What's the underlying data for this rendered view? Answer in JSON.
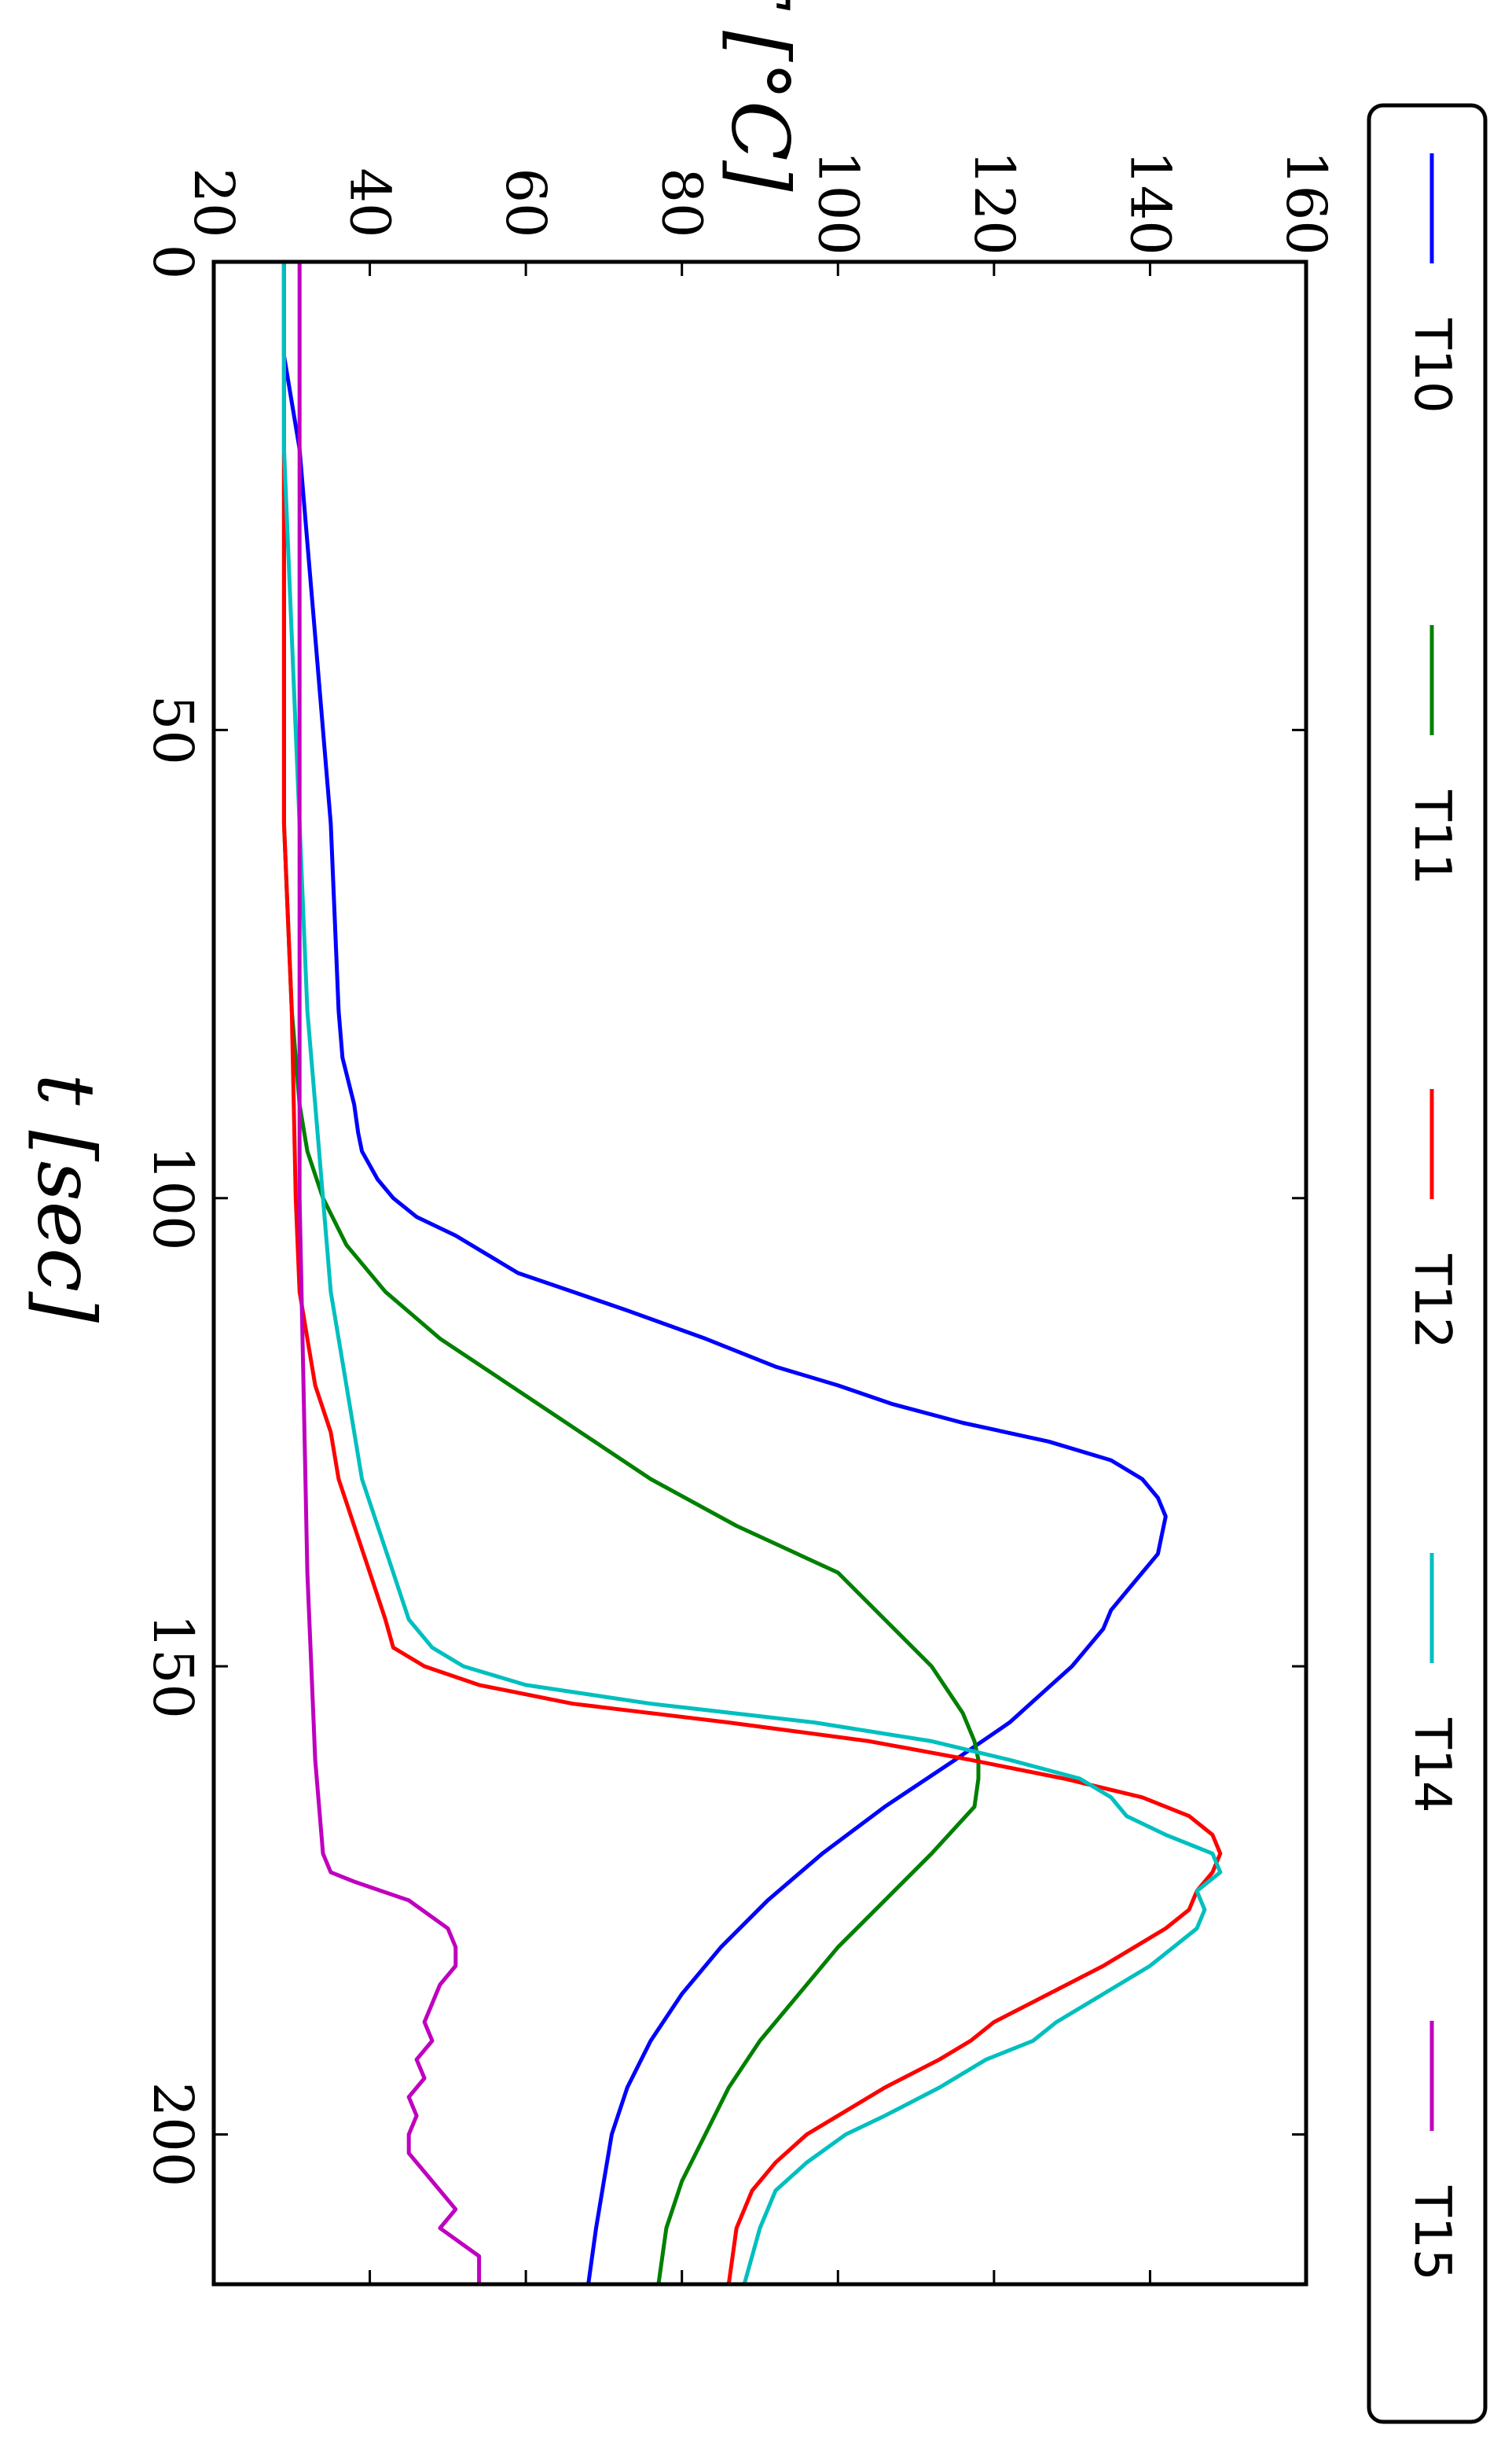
{
  "chart_data": {
    "type": "line",
    "orientation": "rotated-90-clockwise",
    "xlabel": "t [sec]",
    "ylabel": "T [°C]",
    "xlim": [
      0,
      216
    ],
    "ylim": [
      20,
      160
    ],
    "x_ticks": [
      "0",
      "50",
      "100",
      "150",
      "200"
    ],
    "y_ticks": [
      "20",
      "40",
      "60",
      "80",
      "100",
      "120",
      "140",
      "160"
    ],
    "grid": false,
    "legend_position": "right",
    "series": [
      {
        "name": "T10",
        "color": "#0000ff",
        "x": [
          0,
          10,
          20,
          30,
          40,
          50,
          60,
          70,
          80,
          85,
          90,
          93,
          95,
          98,
          100,
          102,
          104,
          106,
          108,
          110,
          112,
          115,
          118,
          120,
          122,
          124,
          126,
          128,
          130,
          132,
          134,
          136,
          138,
          140,
          142,
          144,
          146,
          148,
          150,
          153,
          156,
          160,
          165,
          170,
          175,
          180,
          185,
          190,
          195,
          200,
          205,
          210,
          216
        ],
        "y": [
          29,
          29,
          31,
          32,
          33,
          34,
          35,
          35.5,
          36,
          36.5,
          38,
          38.5,
          39,
          41,
          43,
          46,
          51,
          55,
          59,
          66,
          73,
          83,
          92,
          100,
          107,
          116,
          127,
          135,
          139,
          141,
          142,
          141.5,
          141,
          139,
          137,
          135,
          134,
          132,
          130,
          126,
          122,
          115,
          106,
          98,
          91,
          85,
          80,
          76,
          73,
          71,
          70,
          69,
          68
        ]
      },
      {
        "name": "T11",
        "color": "#008000",
        "x": [
          0,
          20,
          40,
          60,
          80,
          90,
          95,
          100,
          105,
          110,
          115,
          120,
          125,
          130,
          135,
          140,
          145,
          150,
          155,
          158,
          160,
          162,
          165,
          170,
          175,
          180,
          185,
          190,
          195,
          200,
          205,
          210,
          216
        ],
        "y": [
          29,
          29,
          29,
          29,
          30,
          31,
          32,
          34,
          37,
          42,
          49,
          58,
          67,
          76,
          87,
          100,
          106,
          112,
          116,
          117.5,
          118,
          118,
          117.5,
          112,
          106,
          100,
          95,
          90,
          86,
          83,
          80,
          78,
          77
        ]
      },
      {
        "name": "T12",
        "color": "#ff0000",
        "x": [
          0,
          20,
          40,
          60,
          80,
          100,
          110,
          115,
          120,
          125,
          130,
          135,
          140,
          145,
          148,
          150,
          152,
          154,
          156,
          158,
          160,
          162,
          164,
          166,
          168,
          170,
          172,
          174,
          176,
          178,
          180,
          182,
          185,
          188,
          190,
          192,
          195,
          198,
          200,
          203,
          206,
          210,
          216
        ],
        "y": [
          29,
          29,
          29,
          29,
          30,
          30.5,
          31,
          32,
          33,
          35,
          36,
          38,
          40,
          42,
          43,
          47,
          54,
          66,
          86,
          104,
          117,
          129,
          139,
          145,
          148,
          149,
          148,
          146,
          145,
          142,
          138,
          134,
          127,
          120,
          117,
          113,
          106,
          100,
          96,
          92,
          89,
          87,
          86
        ]
      },
      {
        "name": "T14",
        "color": "#00bfbf",
        "x": [
          0,
          20,
          40,
          60,
          80,
          90,
          100,
          110,
          115,
          120,
          125,
          130,
          135,
          140,
          145,
          148,
          150,
          152,
          154,
          156,
          158,
          160,
          162,
          164,
          166,
          168,
          170,
          172,
          174,
          176,
          178,
          180,
          182,
          185,
          188,
          190,
          192,
          195,
          198,
          200,
          203,
          206,
          210,
          216
        ],
        "y": [
          29,
          29,
          30,
          31,
          32,
          33,
          34,
          35,
          36,
          37,
          38,
          39,
          41,
          43,
          45,
          48,
          52,
          60,
          76,
          97,
          112,
          122,
          131,
          135,
          137,
          142,
          148,
          149,
          146,
          147,
          146,
          143,
          140,
          134,
          128,
          125,
          119,
          113,
          106,
          101,
          96,
          92,
          90,
          88
        ]
      },
      {
        "name": "T15",
        "color": "#bf00bf",
        "x": [
          0,
          20,
          40,
          60,
          80,
          100,
          120,
          140,
          160,
          170,
          172,
          173,
          175,
          178,
          180,
          182,
          184,
          186,
          188,
          190,
          192,
          194,
          196,
          198,
          200,
          202,
          205,
          208,
          210,
          213,
          216
        ],
        "y": [
          31,
          31,
          31,
          31,
          31,
          31,
          31.5,
          32,
          33,
          34,
          35,
          38,
          45,
          50,
          51,
          51,
          49,
          48,
          47,
          48,
          46,
          47,
          45,
          46,
          45,
          45,
          48,
          51,
          49,
          54,
          54
        ]
      }
    ]
  }
}
